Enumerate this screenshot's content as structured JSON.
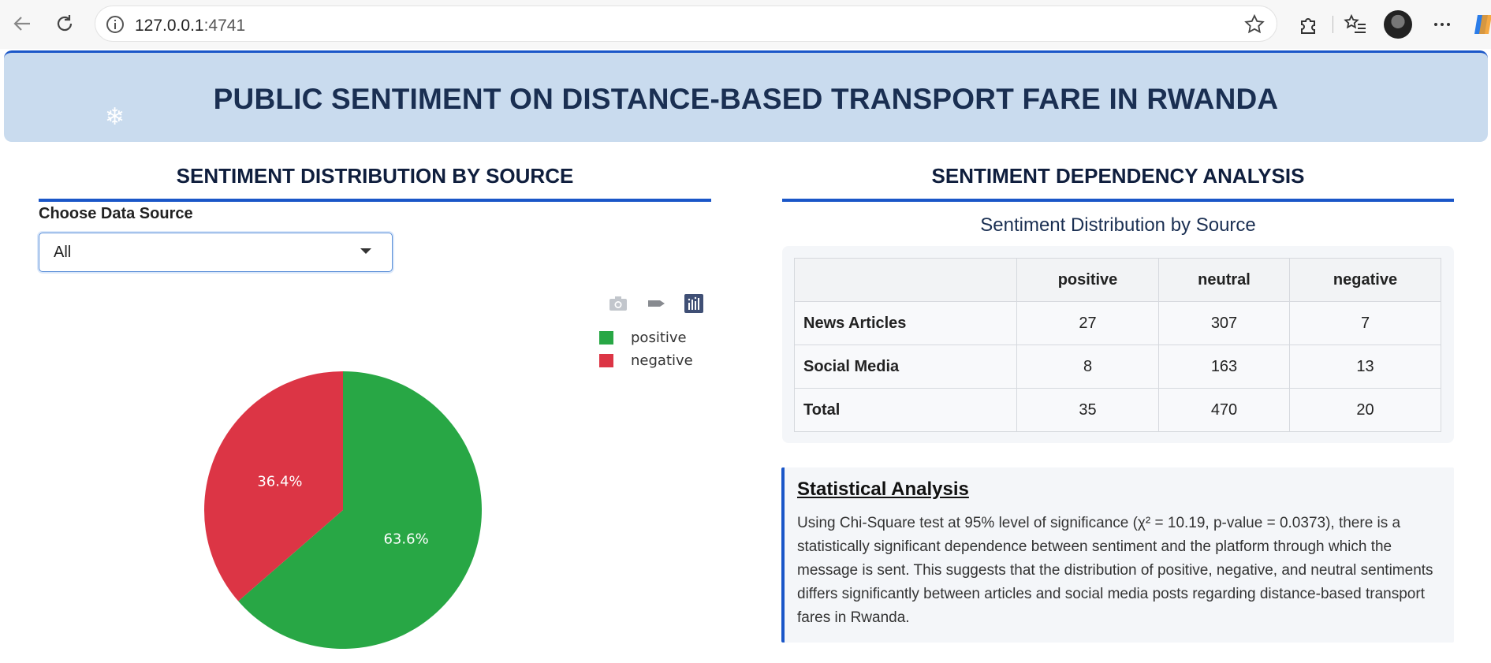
{
  "browser": {
    "url_host": "127.0.0.1",
    "url_port": ":4741"
  },
  "header": {
    "title": "PUBLIC SENTIMENT ON DISTANCE-BASED TRANSPORT FARE IN RWANDA",
    "snowflake": "❄"
  },
  "left": {
    "section_title": "SENTIMENT DISTRIBUTION BY SOURCE",
    "choose_label": "Choose Data Source",
    "dropdown_value": "All"
  },
  "right": {
    "section_title": "SENTIMENT DEPENDENCY ANALYSIS",
    "table_caption": "Sentiment Distribution by Source",
    "table": {
      "columns": [
        "",
        "positive",
        "neutral",
        "negative"
      ],
      "rows": [
        [
          "News Articles",
          "27",
          "307",
          "7"
        ],
        [
          "Social Media",
          "8",
          "163",
          "13"
        ],
        [
          "Total",
          "35",
          "470",
          "20"
        ]
      ]
    },
    "stat_title": "Statistical Analysis",
    "stat_text": "Using Chi-Square test at 95% level of significance (χ² = 10.19, p-value = 0.0373), there is a statistically significant dependence between sentiment and the platform through which the message is sent. This suggests that the distribution of positive, negative, and neutral sentiments differs significantly between articles and social media posts regarding distance-based transport fares in Rwanda."
  },
  "colors": {
    "accent": "#1a56c8",
    "positive": "#28a745",
    "negative": "#dc3545"
  },
  "chart_data": {
    "type": "pie",
    "labels": [
      "positive",
      "negative"
    ],
    "values": [
      63.6,
      36.4
    ],
    "value_labels": [
      "63.6%",
      "36.4%"
    ],
    "colors": [
      "#28a745",
      "#dc3545"
    ],
    "legend_position": "top-right"
  }
}
